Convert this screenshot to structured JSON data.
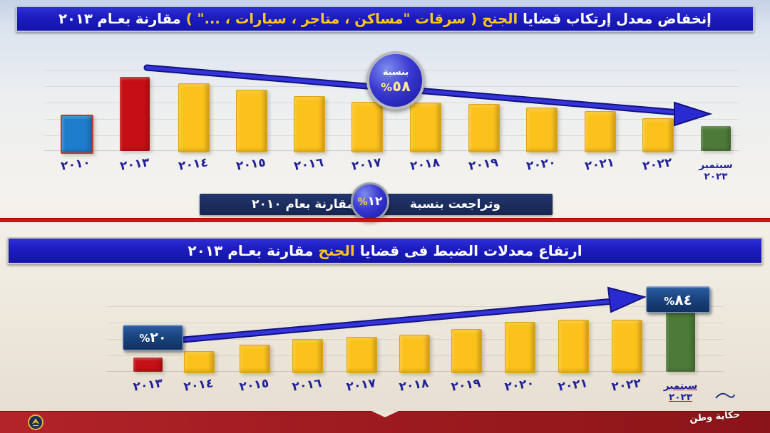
{
  "colors": {
    "banner_blue": "#1d1dc0",
    "banner_navy": "#16264f",
    "title_yellow": "#ffc715",
    "bar_yellow": "#fcc21c",
    "bar_red": "#c60f14",
    "bar_blue": "#1d7ccb",
    "bar_green": "#4d7a39",
    "arrow_blue": "#2525cc",
    "divider_red": "#d01212",
    "footer_red": "#8b1418",
    "year_label_navy": "#1f1f9a"
  },
  "banners": {
    "top": {
      "white1": "إنخفاض معدل إرتكاب قضايا",
      "yellow1": "الجنح",
      "yellow2": "( سرقات \"مساكن ، متاجر ، سيارات ، ...\" )",
      "white2": "مقارنة بعـام ٢٠١٣"
    },
    "middle": {
      "lead": "وتراجعت بنسبة",
      "percent": "%",
      "value": "١٢",
      "tail": "مقارنة بعام ٢٠١٠"
    },
    "second": {
      "white1": "ارتفاع معدلات الضبط فى قضايا",
      "yellow1": "الجنح",
      "white2": "مقارنة بعـام ٢٠١٣"
    }
  },
  "badge58": {
    "label": "بنسبة",
    "percent": "%",
    "value": "٥٨"
  },
  "marks2": {
    "start_percent": "%",
    "start_value": "٢٠",
    "end_percent": "%",
    "end_value": "٨٤"
  },
  "footer": {
    "logo_text": "حكاية وطن",
    "emblem": "police-eagle-emblem"
  },
  "chart_data": [
    {
      "type": "bar",
      "title": "إنخفاض معدل إرتكاب قضايا الجنح ( سرقات \"مساكن ، متاجر ، سيارات ، ...\" ) مقارنة بعام ٢٠١٣",
      "categories": [
        "٢٠١٠",
        "٢٠١٣",
        "٢٠١٤",
        "٢٠١٥",
        "٢٠١٦",
        "٢٠١٧",
        "٢٠١٨",
        "٢٠١٩",
        "٢٠٢٠",
        "٢٠٢١",
        "٢٠٢٢",
        "سبتمبر ٢٠٢٣"
      ],
      "values": [
        49,
        100,
        91,
        83,
        74,
        66,
        65,
        63,
        59,
        54,
        44,
        34
      ],
      "value_note": "relative bar heights estimated from pixels, index 2013=100; no numeric axis shown",
      "colors": [
        "#1d7ccb",
        "#c60f14",
        "#fcc21c",
        "#fcc21c",
        "#fcc21c",
        "#fcc21c",
        "#fcc21c",
        "#fcc21c",
        "#fcc21c",
        "#fcc21c",
        "#fcc21c",
        "#4d7a39"
      ],
      "ylim": [
        0,
        110
      ],
      "grid": "faint horizontal",
      "legend": "none",
      "annotations": [
        {
          "text": "بنسبة ٥٨%",
          "meaning": "misdemeanor (theft) cases fell 58% vs 2013",
          "position": "on downward trend arrow"
        },
        {
          "text": "وتراجعت بنسبة ١٢% مقارنة بعام ٢٠١٠",
          "meaning": "and fell 12% compared to 2010",
          "position": "banner below chart"
        }
      ]
    },
    {
      "type": "bar",
      "title": "ارتفاع معدلات الضبط فى قضايا الجنح مقارنة بعام ٢٠١٣",
      "categories": [
        "٢٠١٣",
        "٢٠١٤",
        "٢٠١٥",
        "٢٠١٦",
        "٢٠١٧",
        "٢٠١٨",
        "٢٠١٩",
        "٢٠٢٠",
        "٢٠٢١",
        "٢٠٢٢",
        "سبتمبر ٢٠٢٣"
      ],
      "values": [
        20,
        29,
        38,
        46,
        49,
        52,
        60,
        70,
        73,
        73,
        84
      ],
      "value_note": "only 2013 (٢٠%) and Sept 2023 (٨٤%) are labeled; intermediate values estimated from bar heights",
      "colors": [
        "#c60f14",
        "#fcc21c",
        "#fcc21c",
        "#fcc21c",
        "#fcc21c",
        "#fcc21c",
        "#fcc21c",
        "#fcc21c",
        "#fcc21c",
        "#fcc21c",
        "#4d7a39"
      ],
      "ylim": [
        0,
        100
      ],
      "grid": "faint horizontal",
      "legend": "none",
      "annotations": [
        {
          "text": "٢٠%",
          "position": "box above 2013 bar"
        },
        {
          "text": "٨٤%",
          "position": "box above Sept 2023 bar, at tip of upward trend arrow"
        }
      ]
    }
  ]
}
